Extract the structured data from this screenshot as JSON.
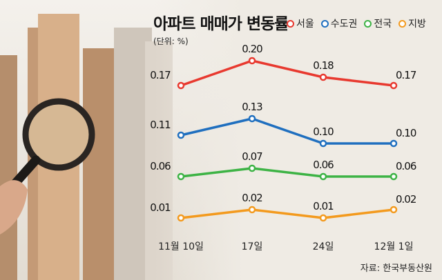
{
  "chart_data": {
    "type": "line",
    "title": "아파트 매매가 변동률",
    "unit": "(단위: %)",
    "categories": [
      "11월 10일",
      "17일",
      "24일",
      "12월 1일"
    ],
    "series": [
      {
        "name": "서울",
        "color": "#e8392f",
        "values": [
          0.17,
          0.2,
          0.18,
          0.17
        ]
      },
      {
        "name": "수도권",
        "color": "#1f6fbf",
        "values": [
          0.11,
          0.13,
          0.1,
          0.1
        ]
      },
      {
        "name": "전국",
        "color": "#3db345",
        "values": [
          0.06,
          0.07,
          0.06,
          0.06
        ]
      },
      {
        "name": "지방",
        "color": "#f39a1e",
        "values": [
          0.01,
          0.02,
          0.01,
          0.02
        ]
      }
    ],
    "data_labels": true,
    "grid": false,
    "legend_placement": "top-right"
  },
  "source": "자료: 한국부동산원"
}
